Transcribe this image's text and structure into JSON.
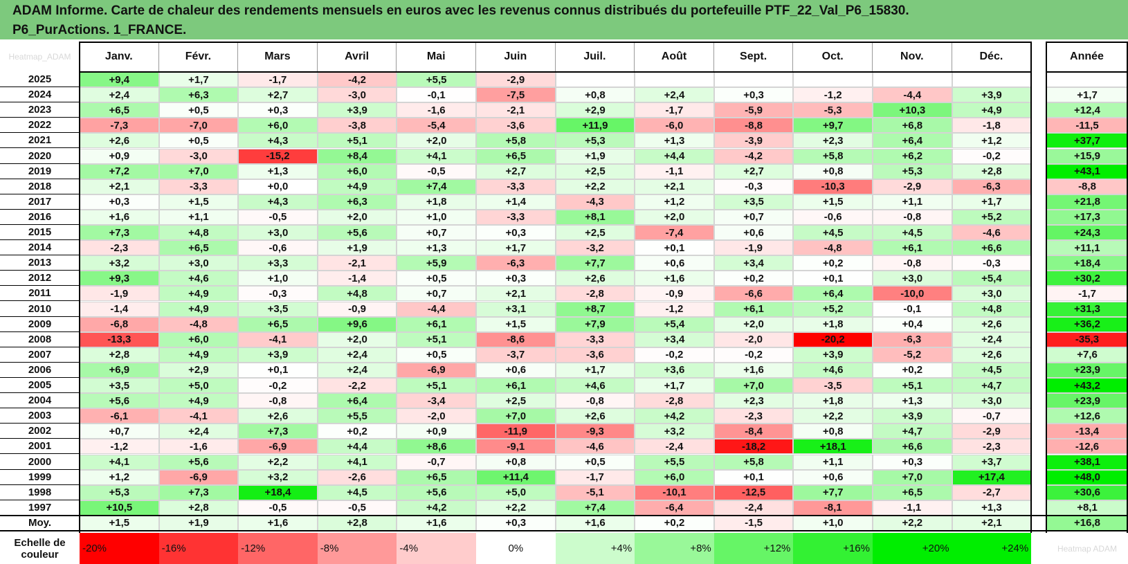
{
  "title": {
    "line1": "ADAM Informe. Carte de chaleur des rendements mensuels en euros avec les revenus connus distribués du portefeuille PTF_22_Val_P6_15830.",
    "line2": "P6_PurActions. 1_FRANCE."
  },
  "corner_label": "Heatmap_ADAM",
  "scale_label": "Echelle de couleur",
  "scale_right_label": "Heatmap ADAM",
  "colors": {
    "banner": "#7dc97d",
    "negative_max": "#ff0000",
    "neutral": "#ffffff",
    "positive_max": "#00ee00"
  },
  "chart_data": {
    "type": "heatmap",
    "title": "ADAM Informe. Carte de chaleur des rendements mensuels en euros avec les revenus connus distribués du portefeuille PTF_22_Val_P6_15830. P6_PurActions. 1_FRANCE.",
    "months": [
      "Janv.",
      "Févr.",
      "Mars",
      "Avril",
      "Mai",
      "Juin",
      "Juil.",
      "Août",
      "Sept.",
      "Oct.",
      "Nov.",
      "Déc."
    ],
    "year_column_label": "Année",
    "average_row_label": "Moy.",
    "rows": [
      {
        "year": "2025",
        "values": [
          "+9,4",
          "+1,7",
          "-1,7",
          "-4,2",
          "+5,5",
          "-2,9",
          "",
          "",
          "",
          "",
          "",
          ""
        ],
        "annual": ""
      },
      {
        "year": "2024",
        "values": [
          "+2,4",
          "+6,3",
          "+2,7",
          "-3,0",
          "-0,1",
          "-7,5",
          "+0,8",
          "+2,4",
          "+0,3",
          "-1,2",
          "-4,4",
          "+3,9"
        ],
        "annual": "+1,7"
      },
      {
        "year": "2023",
        "values": [
          "+6,5",
          "+0,5",
          "+0,3",
          "+3,9",
          "-1,6",
          "-2,1",
          "+2,9",
          "-1,7",
          "-5,9",
          "-5,3",
          "+10,3",
          "+4,9"
        ],
        "annual": "+12,4"
      },
      {
        "year": "2022",
        "values": [
          "-7,3",
          "-7,0",
          "+6,0",
          "-3,8",
          "-5,4",
          "-3,6",
          "+11,9",
          "-6,0",
          "-8,8",
          "+9,7",
          "+6,8",
          "-1,8"
        ],
        "annual": "-11,5"
      },
      {
        "year": "2021",
        "values": [
          "+2,6",
          "+0,5",
          "+4,3",
          "+5,1",
          "+2,0",
          "+5,8",
          "+5,3",
          "+1,3",
          "-3,9",
          "+2,3",
          "+6,4",
          "+1,2"
        ],
        "annual": "+37,7"
      },
      {
        "year": "2020",
        "values": [
          "+0,9",
          "-3,0",
          "-15,2",
          "+8,4",
          "+4,1",
          "+6,5",
          "+1,9",
          "+4,4",
          "-4,2",
          "+5,8",
          "+6,2",
          "-0,2"
        ],
        "annual": "+15,9"
      },
      {
        "year": "2019",
        "values": [
          "+7,2",
          "+7,0",
          "+1,3",
          "+6,0",
          "-0,5",
          "+2,7",
          "+2,5",
          "-1,1",
          "+2,7",
          "+0,8",
          "+5,3",
          "+2,8"
        ],
        "annual": "+43,1"
      },
      {
        "year": "2018",
        "values": [
          "+2,1",
          "-3,3",
          "+0,0",
          "+4,9",
          "+7,4",
          "-3,3",
          "+2,2",
          "+2,1",
          "-0,3",
          "-10,3",
          "-2,9",
          "-6,3"
        ],
        "annual": "-8,8"
      },
      {
        "year": "2017",
        "values": [
          "+0,3",
          "+1,5",
          "+4,3",
          "+6,3",
          "+1,8",
          "+1,4",
          "-4,3",
          "+1,2",
          "+3,5",
          "+1,5",
          "+1,1",
          "+1,7"
        ],
        "annual": "+21,8"
      },
      {
        "year": "2016",
        "values": [
          "+1,6",
          "+1,1",
          "-0,5",
          "+2,0",
          "+1,0",
          "-3,3",
          "+8,1",
          "+2,0",
          "+0,7",
          "-0,6",
          "-0,8",
          "+5,2"
        ],
        "annual": "+17,3"
      },
      {
        "year": "2015",
        "values": [
          "+7,3",
          "+4,8",
          "+3,0",
          "+5,6",
          "+0,7",
          "+0,3",
          "+2,5",
          "-7,4",
          "+0,6",
          "+4,5",
          "+4,5",
          "-4,6"
        ],
        "annual": "+24,3"
      },
      {
        "year": "2014",
        "values": [
          "-2,3",
          "+6,5",
          "-0,6",
          "+1,9",
          "+1,3",
          "+1,7",
          "-3,2",
          "+0,1",
          "-1,9",
          "-4,8",
          "+6,1",
          "+6,6"
        ],
        "annual": "+11,1"
      },
      {
        "year": "2013",
        "values": [
          "+3,2",
          "+3,0",
          "+3,3",
          "-2,1",
          "+5,9",
          "-6,3",
          "+7,7",
          "+0,6",
          "+3,4",
          "+0,2",
          "-0,8",
          "-0,3"
        ],
        "annual": "+18,4"
      },
      {
        "year": "2012",
        "values": [
          "+9,3",
          "+4,6",
          "+1,0",
          "-1,4",
          "+0,5",
          "+0,3",
          "+2,6",
          "+1,6",
          "+0,2",
          "+0,1",
          "+3,0",
          "+5,4"
        ],
        "annual": "+30,2"
      },
      {
        "year": "2011",
        "values": [
          "-1,9",
          "+4,9",
          "-0,3",
          "+4,8",
          "+0,7",
          "+2,1",
          "-2,8",
          "-0,9",
          "-6,6",
          "+6,4",
          "-10,0",
          "+3,0"
        ],
        "annual": "-1,7"
      },
      {
        "year": "2010",
        "values": [
          "-1,4",
          "+4,9",
          "+3,5",
          "-0,9",
          "-4,4",
          "+3,1",
          "+8,7",
          "-1,2",
          "+6,1",
          "+5,2",
          "-0,1",
          "+4,8"
        ],
        "annual": "+31,3"
      },
      {
        "year": "2009",
        "values": [
          "-6,8",
          "-4,8",
          "+6,5",
          "+9,6",
          "+6,1",
          "+1,5",
          "+7,9",
          "+5,4",
          "+2,0",
          "+1,8",
          "+0,4",
          "+2,6"
        ],
        "annual": "+36,2"
      },
      {
        "year": "2008",
        "values": [
          "-13,3",
          "+6,0",
          "-4,1",
          "+2,0",
          "+5,1",
          "-8,6",
          "-3,3",
          "+3,4",
          "-2,0",
          "-20,2",
          "-6,3",
          "+2,4"
        ],
        "annual": "-35,3"
      },
      {
        "year": "2007",
        "values": [
          "+2,8",
          "+4,9",
          "+3,9",
          "+2,4",
          "+0,5",
          "-3,7",
          "-3,6",
          "-0,2",
          "-0,2",
          "+3,9",
          "-5,2",
          "+2,6"
        ],
        "annual": "+7,6"
      },
      {
        "year": "2006",
        "values": [
          "+6,9",
          "+2,9",
          "+0,1",
          "+2,4",
          "-6,9",
          "+0,6",
          "+1,7",
          "+3,6",
          "+1,6",
          "+4,6",
          "+0,2",
          "+4,5"
        ],
        "annual": "+23,9"
      },
      {
        "year": "2005",
        "values": [
          "+3,5",
          "+5,0",
          "-0,2",
          "-2,2",
          "+5,1",
          "+6,1",
          "+4,6",
          "+1,7",
          "+7,0",
          "-3,5",
          "+5,1",
          "+4,7"
        ],
        "annual": "+43,2"
      },
      {
        "year": "2004",
        "values": [
          "+5,6",
          "+4,9",
          "-0,8",
          "+6,4",
          "-3,4",
          "+2,5",
          "-0,8",
          "-2,8",
          "+2,3",
          "+1,8",
          "+1,3",
          "+3,0"
        ],
        "annual": "+23,9"
      },
      {
        "year": "2003",
        "values": [
          "-6,1",
          "-4,1",
          "+2,6",
          "+5,5",
          "-2,0",
          "+7,0",
          "+2,6",
          "+4,2",
          "-2,3",
          "+2,2",
          "+3,9",
          "-0,7"
        ],
        "annual": "+12,6"
      },
      {
        "year": "2002",
        "values": [
          "+0,7",
          "+2,4",
          "+7,3",
          "+0,2",
          "+0,9",
          "-11,9",
          "-9,3",
          "+3,2",
          "-8,4",
          "+0,8",
          "+4,7",
          "-2,9"
        ],
        "annual": "-13,4"
      },
      {
        "year": "2001",
        "values": [
          "-1,2",
          "-1,6",
          "-6,9",
          "+4,4",
          "+8,6",
          "-9,1",
          "-4,6",
          "-2,4",
          "-18,2",
          "+18,1",
          "+6,6",
          "-2,3"
        ],
        "annual": "-12,6"
      },
      {
        "year": "2000",
        "values": [
          "+4,1",
          "+5,6",
          "+2,2",
          "+4,1",
          "-0,7",
          "+0,8",
          "+0,5",
          "+5,5",
          "+5,8",
          "+1,1",
          "+0,3",
          "+3,7"
        ],
        "annual": "+38,1"
      },
      {
        "year": "1999",
        "values": [
          "+1,2",
          "-6,9",
          "+3,2",
          "-2,6",
          "+6,5",
          "+11,4",
          "-1,7",
          "+6,0",
          "+0,1",
          "+0,6",
          "+7,0",
          "+17,4"
        ],
        "annual": "+48,0"
      },
      {
        "year": "1998",
        "values": [
          "+5,3",
          "+7,3",
          "+18,4",
          "+4,5",
          "+5,6",
          "+5,0",
          "-5,1",
          "-10,1",
          "-12,5",
          "+7,7",
          "+6,5",
          "-2,7"
        ],
        "annual": "+30,6"
      },
      {
        "year": "1997",
        "values": [
          "+10,5",
          "+2,8",
          "-0,5",
          "-0,5",
          "+4,2",
          "+2,2",
          "+7,4",
          "-6,4",
          "-2,4",
          "-8,1",
          "-1,1",
          "+1,3"
        ],
        "annual": "+8,1"
      }
    ],
    "average": {
      "values": [
        "+1,5",
        "+1,9",
        "+1,6",
        "+2,8",
        "+1,6",
        "+0,3",
        "+1,6",
        "+0,2",
        "-1,5",
        "+1,0",
        "+2,2",
        "+2,1"
      ],
      "annual": "+16,8"
    },
    "color_scale": [
      "-20%",
      "-16%",
      "-12%",
      "-8%",
      "-4%",
      "0%",
      "+4%",
      "+8%",
      "+12%",
      "+16%",
      "+20%",
      "+24%"
    ],
    "color_scale_values": [
      -20,
      -16,
      -12,
      -8,
      -4,
      0,
      4,
      8,
      12,
      16,
      20,
      24
    ]
  }
}
